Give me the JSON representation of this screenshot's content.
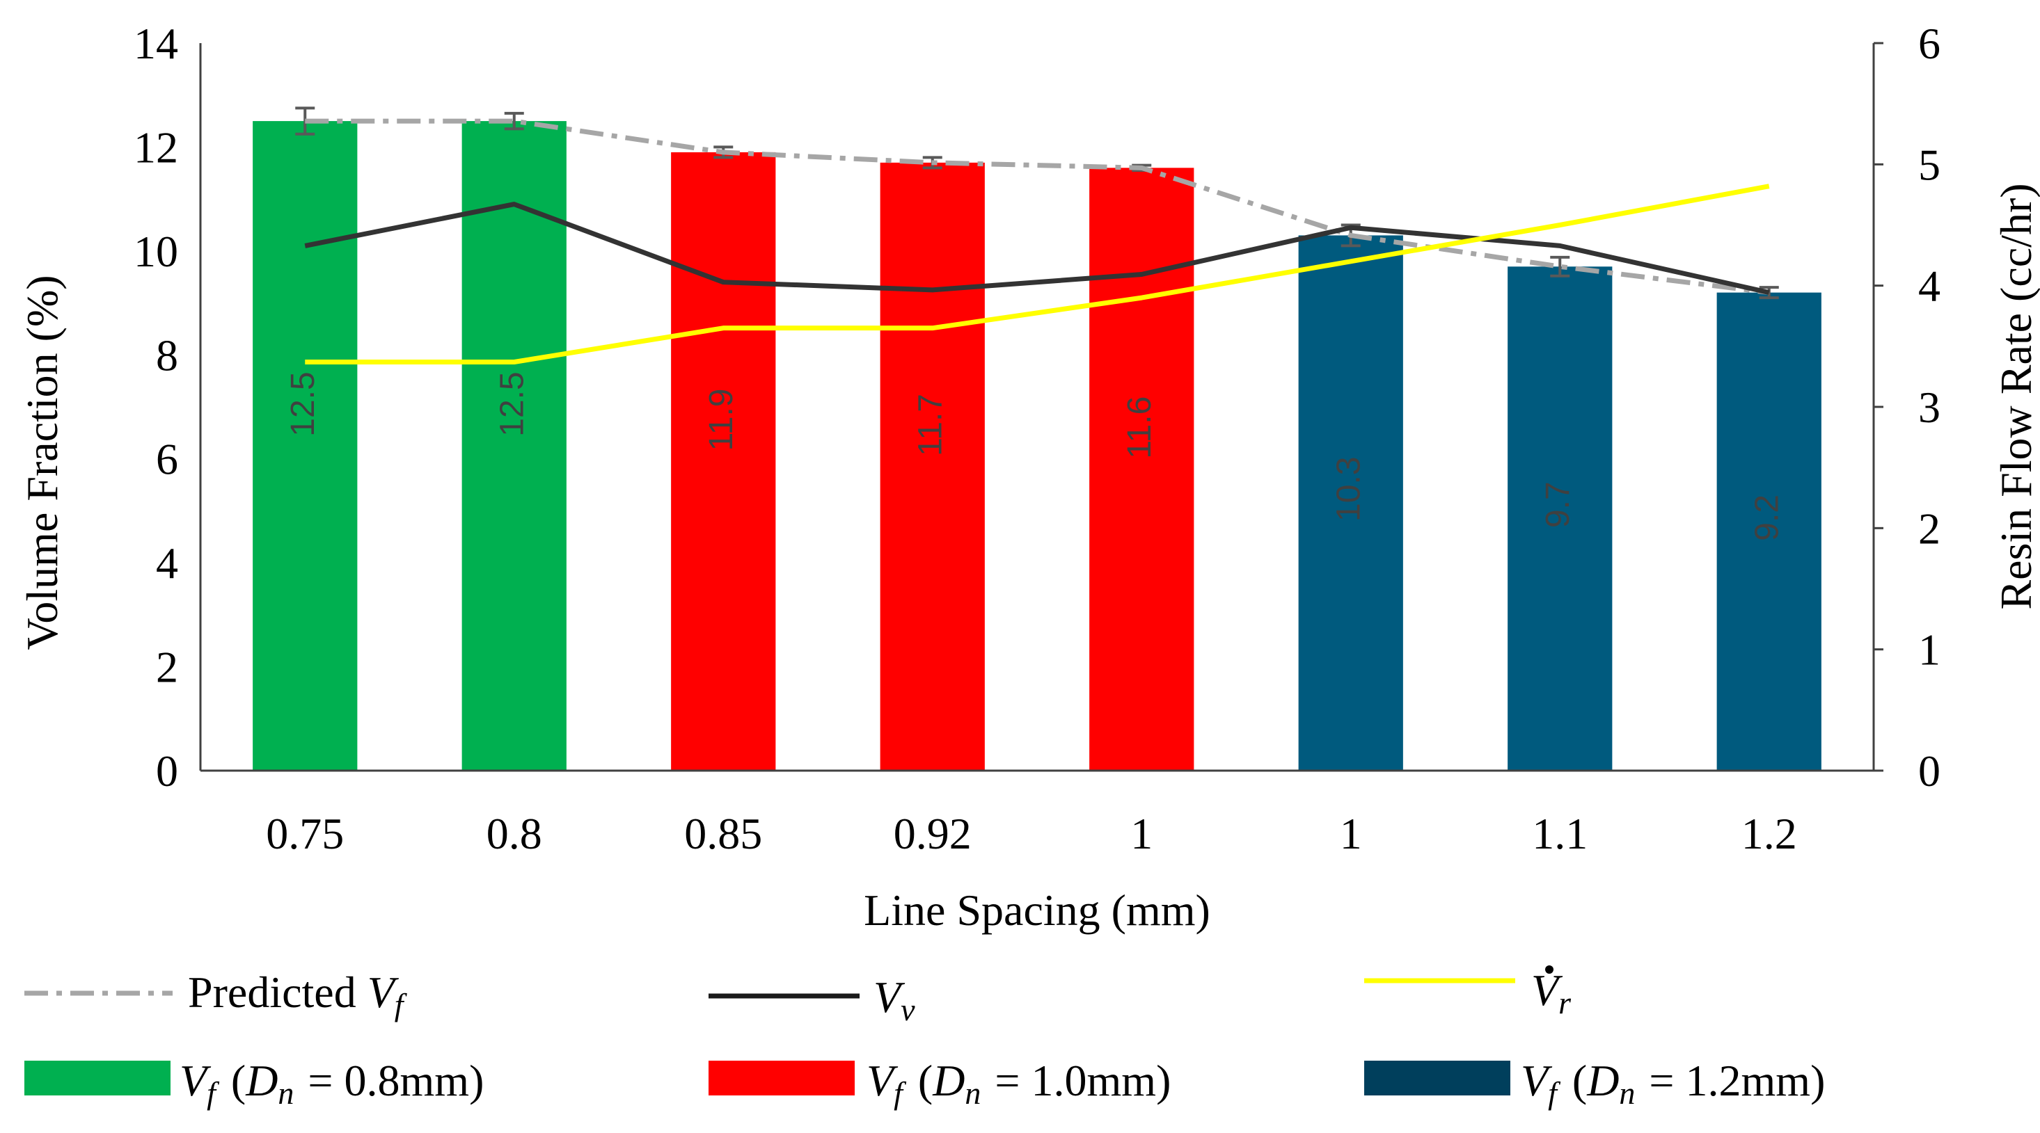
{
  "chart_data": {
    "type": "bar",
    "categories": [
      "0.75",
      "0.8",
      "0.85",
      "0.92",
      "1",
      "1",
      "1.1",
      "1.2"
    ],
    "xlabel": "Line Spacing (mm)",
    "ylabel": "Volume Fraction (%)",
    "y2label": "Resin Flow Rate (cc/hr)",
    "ylim": [
      0,
      14
    ],
    "yticks": [
      0,
      2,
      4,
      6,
      8,
      10,
      12,
      14
    ],
    "y2lim": [
      0,
      6
    ],
    "y2ticks": [
      0,
      1,
      2,
      3,
      4,
      5,
      6
    ],
    "bars": {
      "values": [
        12.5,
        12.5,
        11.9,
        11.7,
        11.6,
        10.3,
        9.7,
        9.2
      ],
      "labels": [
        "12.5",
        "12.5",
        "11.9",
        "11.7",
        "11.6",
        "10.3",
        "9.7",
        "9.2"
      ],
      "group": [
        0,
        0,
        1,
        1,
        1,
        2,
        2,
        2
      ],
      "errors": [
        0.25,
        0.15,
        0.1,
        0.1,
        0.05,
        0.2,
        0.18,
        0.1
      ]
    },
    "bar_groups": [
      {
        "name": "Vf (Dn = 0.8mm)",
        "color": "#00b050"
      },
      {
        "name": "Vf (Dn = 1.0mm)",
        "color": "#ff0000"
      },
      {
        "name": "Vf (Dn = 1.2mm)",
        "color": "#005a7e"
      }
    ],
    "series": [
      {
        "name": "Predicted Vf",
        "axis": "left",
        "style": "dash-dot",
        "color": "#a6a6a6",
        "values": [
          12.5,
          12.5,
          11.9,
          11.7,
          11.6,
          10.3,
          9.7,
          9.2
        ]
      },
      {
        "name": "Vv",
        "axis": "left",
        "style": "solid",
        "color": "#333333",
        "values": [
          10.1,
          10.9,
          9.4,
          9.25,
          9.55,
          10.45,
          10.1,
          9.2
        ]
      },
      {
        "name": "Vr dot",
        "axis": "right",
        "style": "solid",
        "color": "#ffff00",
        "values": [
          3.37,
          3.37,
          3.65,
          3.65,
          3.9,
          4.2,
          4.5,
          4.82
        ]
      }
    ],
    "legend": {
      "placement": "bottom",
      "predicted": {
        "text": "Predicted ",
        "var": "V",
        "sub": "f"
      },
      "vv": {
        "var": "V",
        "sub": "v"
      },
      "vr": {
        "var": "V",
        "sub": "r"
      },
      "bar_label": {
        "var": "V",
        "sub": "f",
        "dn_var": "D",
        "dn_sub": "n"
      },
      "bar_values": [
        "= 0.8mm)",
        "= 1.0mm)",
        "= 1.2mm)"
      ]
    }
  },
  "colors": {
    "axis": "#404040",
    "grid": "#000000",
    "bar_label": "#404040",
    "error_bar": "#595959",
    "legend_dark_blue": "#003f5c"
  }
}
